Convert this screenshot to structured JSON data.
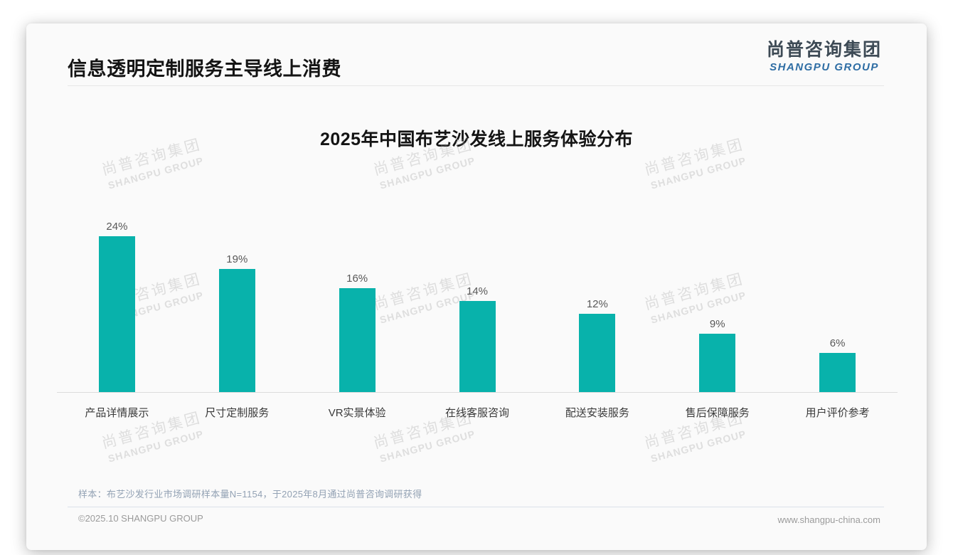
{
  "slide": {
    "title": "信息透明定制服务主导线上消费",
    "logo": {
      "zh": "尚普咨询集团",
      "en": "SHANGPU GROUP"
    },
    "note": "样本：布艺沙发行业市场调研样本量N=1154，于2025年8月通过尚普咨询调研获得",
    "copyright": "©2025.10 SHANGPU GROUP",
    "website": "www.shangpu-china.com"
  },
  "watermark": {
    "zh": "尚普咨询集团",
    "en": "SHANGPU GROUP"
  },
  "colors": {
    "bar": "#08b2ab",
    "logo_dark": "#3d4a55",
    "logo_blue": "#2e6da4",
    "note_text": "#93a2b4"
  },
  "chart_data": {
    "type": "bar",
    "title": "2025年中国布艺沙发线上服务体验分布",
    "categories": [
      "产品详情展示",
      "尺寸定制服务",
      "VR实景体验",
      "在线客服咨询",
      "配送安装服务",
      "售后保障服务",
      "用户评价参考"
    ],
    "values": [
      24,
      19,
      16,
      14,
      12,
      9,
      6
    ],
    "data_labels": [
      "24%",
      "19%",
      "16%",
      "14%",
      "12%",
      "9%",
      "6%"
    ],
    "unit": "%",
    "xlabel": "",
    "ylabel": "",
    "ylim": [
      0,
      26
    ],
    "grid": false,
    "legend": false,
    "bar_color": "#08b2ab"
  }
}
